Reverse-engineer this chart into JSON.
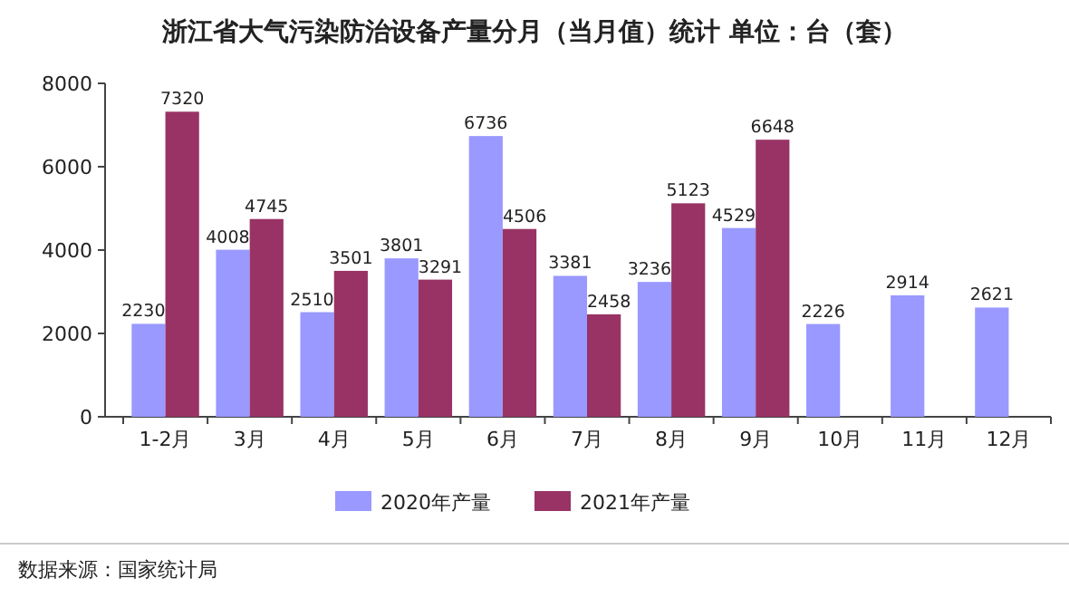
{
  "chart_data": {
    "type": "bar",
    "title": "浙江省大气污染防治设备产量分月（当月值）统计 单位：台（套）",
    "categories": [
      "1-2月",
      "3月",
      "4月",
      "5月",
      "6月",
      "7月",
      "8月",
      "9月",
      "10月",
      "11月",
      "12月"
    ],
    "series": [
      {
        "name": "2020年产量",
        "color": "#9999ff",
        "values": [
          2230,
          4008,
          2510,
          3801,
          6736,
          3381,
          3236,
          4529,
          2226,
          2914,
          2621
        ]
      },
      {
        "name": "2021年产量",
        "color": "#993366",
        "values": [
          7320,
          4745,
          3501,
          3291,
          4506,
          2458,
          5123,
          6648,
          null,
          null,
          null
        ]
      }
    ],
    "ylim": [
      0,
      8000
    ],
    "yticks": [
      0,
      2000,
      4000,
      6000,
      8000
    ],
    "data_labels": true,
    "legend": "bottom",
    "annotations": [
      "数据来源：国家统计局"
    ]
  }
}
